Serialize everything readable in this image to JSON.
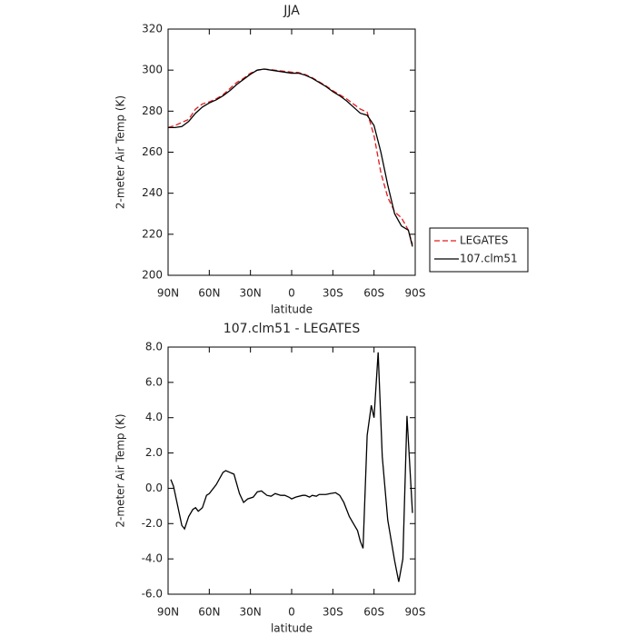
{
  "chart_data": [
    {
      "type": "line",
      "title": "JJA",
      "x_label": "latitude",
      "y_label": "2-meter Air Temp (K)",
      "x": [
        90,
        85,
        80,
        75,
        70,
        65,
        60,
        55,
        50,
        45,
        40,
        35,
        30,
        25,
        20,
        15,
        10,
        5,
        0,
        -5,
        -10,
        -15,
        -20,
        -25,
        -30,
        -35,
        -40,
        -45,
        -50,
        -55,
        -60,
        -65,
        -70,
        -75,
        -80,
        -85,
        -88
      ],
      "series": [
        {
          "name": "LEGATES",
          "color": "#e41a1c",
          "linestyle": "dashed",
          "values": [
            272,
            273,
            274.5,
            276,
            281,
            283.5,
            284.5,
            286,
            288,
            291,
            294,
            296,
            298.5,
            300,
            300.5,
            300.2,
            299.8,
            299.4,
            299,
            298.8,
            297.8,
            296.3,
            294.3,
            292.3,
            290,
            288,
            286,
            283.5,
            281,
            279.5,
            268,
            250,
            238,
            231,
            228,
            222,
            215
          ]
        },
        {
          "name": "107.clm51",
          "color": "#000000",
          "linestyle": "solid",
          "values": [
            272,
            272,
            272.5,
            275,
            279,
            282,
            284,
            285.5,
            287.5,
            290,
            293,
            295.5,
            298,
            300,
            300.5,
            300,
            299.5,
            299,
            298.5,
            298.5,
            297.5,
            296,
            294,
            292,
            289.5,
            287.5,
            285,
            282,
            279,
            278,
            273,
            260,
            244,
            230,
            224,
            222,
            214
          ]
        }
      ],
      "xlim": [
        90,
        -90
      ],
      "xticks": [
        {
          "value": 90,
          "label": "90N"
        },
        {
          "value": 60,
          "label": "60N"
        },
        {
          "value": 30,
          "label": "30N"
        },
        0,
        {
          "value": -30,
          "label": "30S"
        },
        {
          "value": -60,
          "label": "60S"
        },
        {
          "value": -90,
          "label": "90S"
        }
      ],
      "ylim": [
        200,
        320
      ],
      "yticks": [
        200,
        220,
        240,
        260,
        280,
        300,
        320
      ],
      "legend": "right"
    },
    {
      "type": "line",
      "title": "107.clm51 - LEGATES",
      "x_label": "latitude",
      "y_label": "2-meter Air Temp (K)",
      "x": [
        88,
        86,
        80,
        78,
        75,
        72,
        70,
        68,
        65,
        62,
        60,
        55,
        50,
        48,
        45,
        42,
        38,
        35,
        32,
        28,
        25,
        22,
        18,
        15,
        12,
        8,
        5,
        2,
        0,
        -3,
        -8,
        -10,
        -13,
        -15,
        -18,
        -20,
        -25,
        -28,
        -32,
        -35,
        -38,
        -42,
        -45,
        -48,
        -50,
        -52,
        -55,
        -58,
        -60,
        -63,
        -66,
        -70,
        -75,
        -78,
        -81,
        -84,
        -88
      ],
      "values": [
        0.5,
        0.1,
        -2.1,
        -2.3,
        -1.6,
        -1.2,
        -1.1,
        -1.3,
        -1.1,
        -0.4,
        -0.3,
        0.2,
        0.9,
        1.0,
        0.9,
        0.8,
        -0.3,
        -0.8,
        -0.6,
        -0.5,
        -0.2,
        -0.15,
        -0.4,
        -0.45,
        -0.3,
        -0.4,
        -0.4,
        -0.5,
        -0.6,
        -0.5,
        -0.4,
        -0.4,
        -0.5,
        -0.4,
        -0.45,
        -0.35,
        -0.35,
        -0.3,
        -0.25,
        -0.4,
        -0.8,
        -1.6,
        -2.0,
        -2.4,
        -3.0,
        -3.4,
        3.0,
        4.7,
        4.0,
        7.7,
        1.8,
        -1.8,
        -4.1,
        -5.3,
        -4.0,
        4.1,
        -1.4
      ],
      "color": "#000000",
      "xlim": [
        90,
        -90
      ],
      "xticks": [
        {
          "value": 90,
          "label": "90N"
        },
        {
          "value": 60,
          "label": "60N"
        },
        {
          "value": 30,
          "label": "30N"
        },
        0,
        {
          "value": -30,
          "label": "30S"
        },
        {
          "value": -60,
          "label": "60S"
        },
        {
          "value": -90,
          "label": "90S"
        }
      ],
      "ylim": [
        -6,
        8
      ],
      "yticks": [
        {
          "value": -6,
          "label": "-6.0"
        },
        {
          "value": -4,
          "label": "-4.0"
        },
        {
          "value": -2,
          "label": "-2.0"
        },
        {
          "value": 0,
          "label": "0.0"
        },
        {
          "value": 2,
          "label": "2.0"
        },
        {
          "value": 4,
          "label": "4.0"
        },
        {
          "value": 6,
          "label": "6.0"
        },
        {
          "value": 8,
          "label": "8.0"
        }
      ]
    }
  ]
}
